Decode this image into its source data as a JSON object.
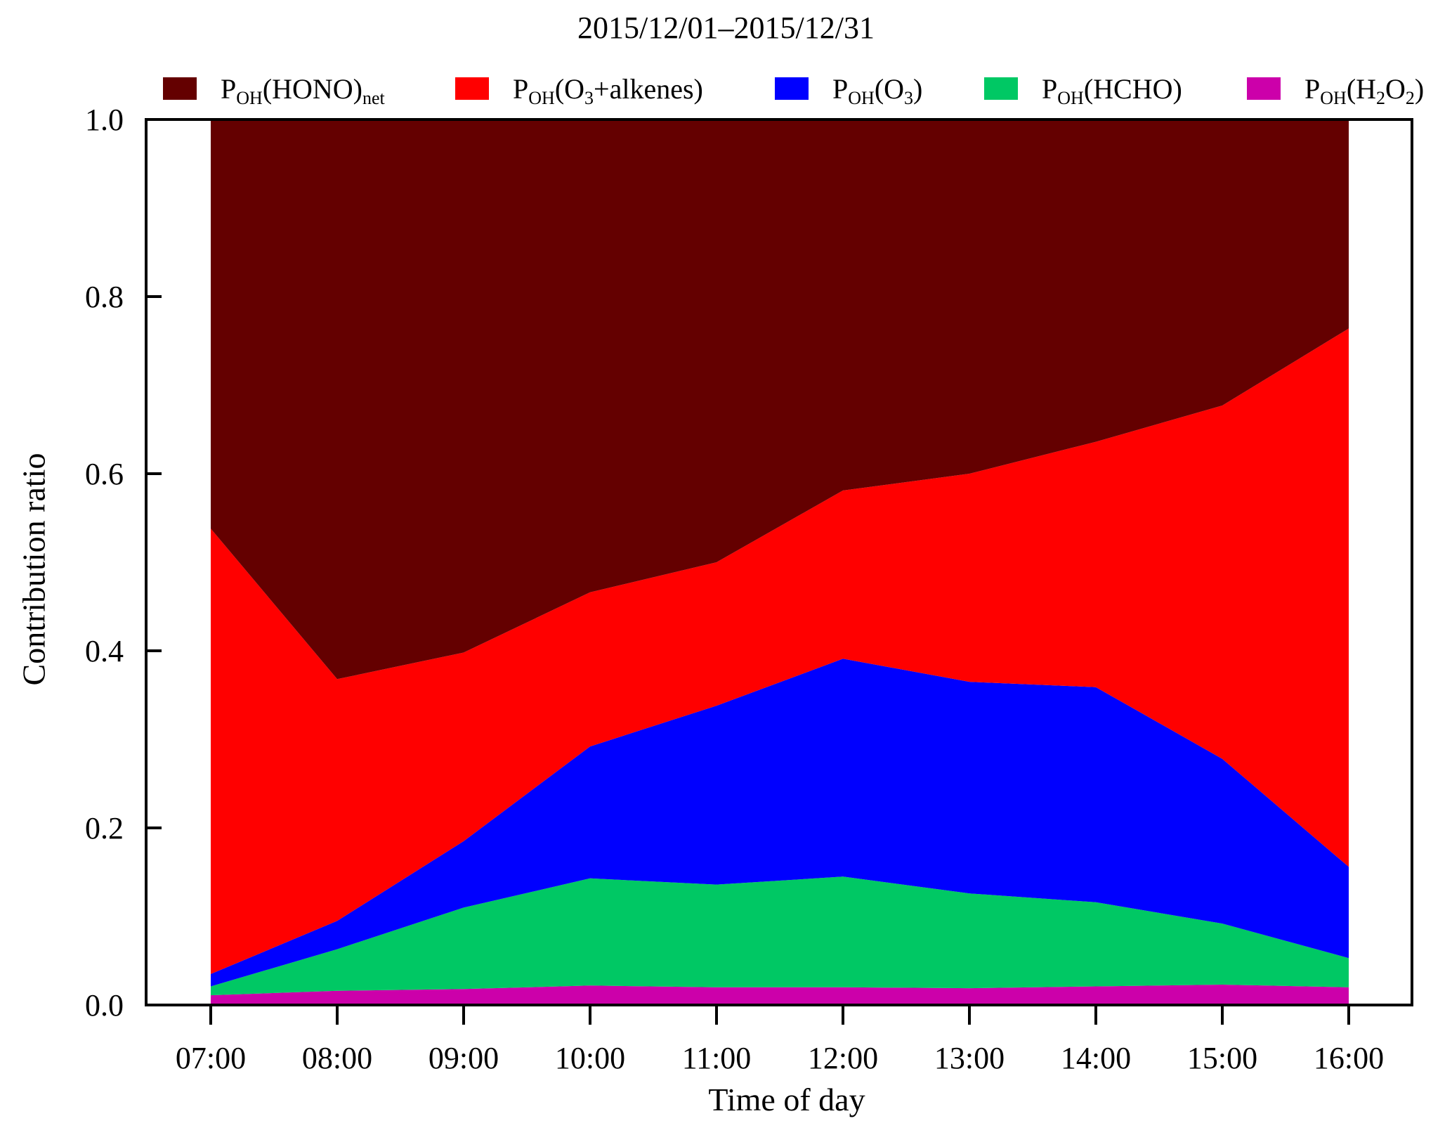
{
  "chart_data": {
    "type": "area",
    "title": "2015/12/01–2015/12/31",
    "xlabel": "Time of day",
    "ylabel": "Contribution ratio",
    "ylim": [
      0.0,
      1.0
    ],
    "y_ticks": [
      "0.0",
      "0.2",
      "0.4",
      "0.6",
      "0.8",
      "1.0"
    ],
    "categories": [
      "07:00",
      "08:00",
      "09:00",
      "10:00",
      "11:00",
      "12:00",
      "13:00",
      "14:00",
      "15:00",
      "16:00"
    ],
    "stacked": true,
    "legend_position": "top",
    "grid": false,
    "series": [
      {
        "name": "P_OH(H2O2)",
        "color": "#cc00aa",
        "values": [
          0.011,
          0.016,
          0.018,
          0.022,
          0.02,
          0.02,
          0.019,
          0.021,
          0.023,
          0.02
        ]
      },
      {
        "name": "P_OH(HCHO)",
        "color": "#00c864",
        "values": [
          0.01,
          0.047,
          0.092,
          0.121,
          0.116,
          0.125,
          0.107,
          0.095,
          0.069,
          0.033
        ]
      },
      {
        "name": "P_OH(O3)",
        "color": "#0000ff",
        "values": [
          0.014,
          0.032,
          0.075,
          0.149,
          0.202,
          0.246,
          0.239,
          0.243,
          0.186,
          0.103
        ]
      },
      {
        "name": "P_OH(O3+alkenes)",
        "color": "#ff0000",
        "values": [
          0.503,
          0.273,
          0.213,
          0.174,
          0.162,
          0.19,
          0.235,
          0.277,
          0.399,
          0.608
        ]
      },
      {
        "name": "P_OH(HONO)_net",
        "color": "#640000",
        "values": [
          0.462,
          0.632,
          0.602,
          0.534,
          0.5,
          0.419,
          0.4,
          0.364,
          0.323,
          0.236
        ]
      }
    ],
    "legend": [
      {
        "base": "P",
        "sub": "OH",
        "text": "(HONO)",
        "sub2": "net",
        "text2": "",
        "color": "#640000"
      },
      {
        "base": "P",
        "sub": "OH",
        "text": "(O",
        "sub2": "3",
        "text2": "+alkenes)",
        "color": "#ff0000"
      },
      {
        "base": "P",
        "sub": "OH",
        "text": "(O",
        "sub2": "3",
        "text2": ")",
        "color": "#0000ff"
      },
      {
        "base": "P",
        "sub": "OH",
        "text": "(HCHO)",
        "sub2": "",
        "text2": "",
        "color": "#00c864"
      },
      {
        "base": "P",
        "sub": "OH",
        "text": "(H",
        "sub2": "2",
        "text2": "O",
        "sub3": "2",
        "text3": ")",
        "color": "#cc00aa"
      }
    ]
  }
}
